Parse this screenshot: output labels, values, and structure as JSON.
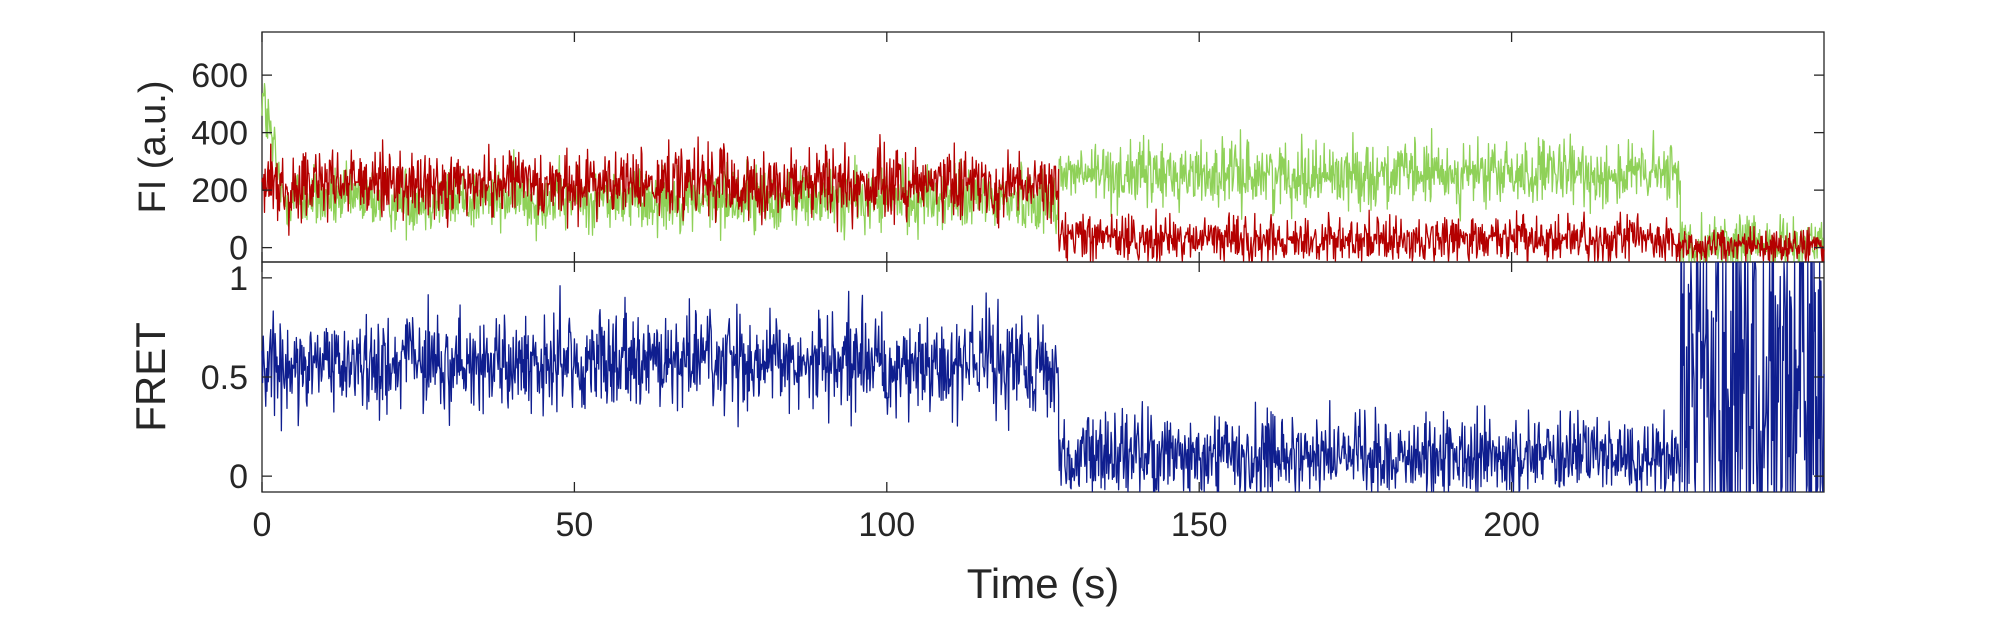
{
  "chart_data": [
    {
      "type": "line",
      "panel": "top",
      "ylabel": "FI (a.u.)",
      "xlim": [
        0,
        250
      ],
      "ylim": [
        -50,
        750
      ],
      "yticks": [
        0,
        200,
        400,
        600
      ],
      "ytick_labels": [
        "0",
        "200",
        "400",
        "600"
      ],
      "grid": false,
      "colors": {
        "donor": "#8fd158",
        "acceptor": "#b40000"
      },
      "segments": {
        "donor": [
          {
            "t0": 0,
            "t1": 3,
            "mean_start": 540,
            "mean_end": 210,
            "noise_sd": 60
          },
          {
            "t0": 3,
            "t1": 127.5,
            "mean": 170,
            "noise_sd": 55
          },
          {
            "t0": 127.5,
            "t1": 227,
            "mean": 255,
            "noise_sd": 55
          },
          {
            "t0": 227,
            "t1": 250,
            "mean": 15,
            "noise_sd": 45
          }
        ],
        "acceptor": [
          {
            "t0": 0,
            "t1": 127.5,
            "mean": 220,
            "noise_sd": 60
          },
          {
            "t0": 127.5,
            "t1": 227,
            "mean": 30,
            "noise_sd": 40
          },
          {
            "t0": 227,
            "t1": 250,
            "mean": 5,
            "noise_sd": 30
          }
        ]
      }
    },
    {
      "type": "line",
      "panel": "bottom",
      "xlabel": "Time (s)",
      "ylabel": "FRET",
      "xlim": [
        0,
        250
      ],
      "ylim": [
        -0.08,
        1.08
      ],
      "xticks": [
        0,
        50,
        100,
        150,
        200
      ],
      "xtick_labels": [
        "0",
        "50",
        "100",
        "150",
        "200"
      ],
      "yticks": [
        0,
        0.5,
        1
      ],
      "ytick_labels": [
        "0",
        "0.5",
        "1"
      ],
      "grid": false,
      "color": "#0f1e8f",
      "segments": [
        {
          "t0": 0,
          "t1": 127.5,
          "mean": 0.57,
          "noise_sd": 0.12
        },
        {
          "t0": 127.5,
          "t1": 227,
          "mean": 0.1,
          "noise_sd": 0.1
        },
        {
          "t0": 227,
          "t1": 250,
          "mean": 0.5,
          "noise_sd": 0.6
        }
      ]
    }
  ]
}
